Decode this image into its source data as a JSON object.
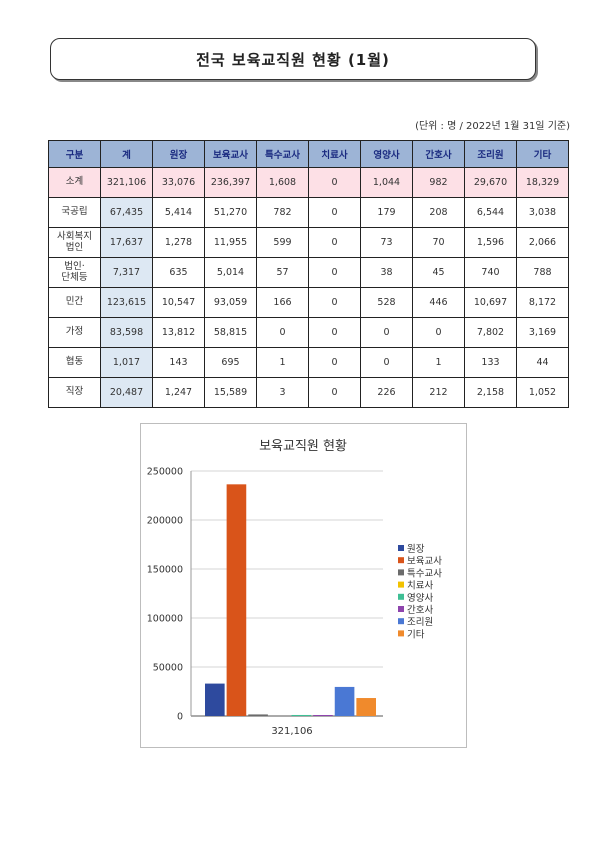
{
  "document": {
    "title": "전국 보육교직원 현황 (1월)",
    "unit_note": "(단위 : 명 / 2022년 1월 31일 기준)"
  },
  "table": {
    "headers": [
      "구분",
      "계",
      "원장",
      "보육교사",
      "특수교사",
      "치료사",
      "영양사",
      "간호사",
      "조리원",
      "기타"
    ],
    "rows": [
      {
        "label": "소계",
        "values": [
          "321,106",
          "33,076",
          "236,397",
          "1,608",
          "0",
          "1,044",
          "982",
          "29,670",
          "18,329"
        ]
      },
      {
        "label": "국공립",
        "values": [
          "67,435",
          "5,414",
          "51,270",
          "782",
          "0",
          "179",
          "208",
          "6,544",
          "3,038"
        ]
      },
      {
        "label": "사회복지\n법인",
        "values": [
          "17,637",
          "1,278",
          "11,955",
          "599",
          "0",
          "73",
          "70",
          "1,596",
          "2,066"
        ]
      },
      {
        "label": "법인·\n단체등",
        "values": [
          "7,317",
          "635",
          "5,014",
          "57",
          "0",
          "38",
          "45",
          "740",
          "788"
        ]
      },
      {
        "label": "민간",
        "values": [
          "123,615",
          "10,547",
          "93,059",
          "166",
          "0",
          "528",
          "446",
          "10,697",
          "8,172"
        ]
      },
      {
        "label": "가정",
        "values": [
          "83,598",
          "13,812",
          "58,815",
          "0",
          "0",
          "0",
          "0",
          "7,802",
          "3,169"
        ]
      },
      {
        "label": "협동",
        "values": [
          "1,017",
          "143",
          "695",
          "1",
          "0",
          "0",
          "1",
          "133",
          "44"
        ]
      },
      {
        "label": "직장",
        "values": [
          "20,487",
          "1,247",
          "15,589",
          "3",
          "0",
          "226",
          "212",
          "2,158",
          "1,052"
        ]
      }
    ]
  },
  "chart_data": {
    "type": "bar",
    "title": "보육교직원 현황",
    "categories": [
      "321,106"
    ],
    "series": [
      {
        "name": "원장",
        "values": [
          33076
        ],
        "color": "#2e4a9e"
      },
      {
        "name": "보육교사",
        "values": [
          236397
        ],
        "color": "#d9541a"
      },
      {
        "name": "특수교사",
        "values": [
          1608
        ],
        "color": "#6b6b6b"
      },
      {
        "name": "치료사",
        "values": [
          0
        ],
        "color": "#f2c200"
      },
      {
        "name": "영양사",
        "values": [
          1044
        ],
        "color": "#3fbf95"
      },
      {
        "name": "간호사",
        "values": [
          982
        ],
        "color": "#8e44ad"
      },
      {
        "name": "조리원",
        "values": [
          29670
        ],
        "color": "#4a78d4"
      },
      {
        "name": "기타",
        "values": [
          18329
        ],
        "color": "#f08a2c"
      }
    ],
    "ylim": [
      0,
      250000
    ],
    "yticks": [
      "0",
      "50000",
      "100000",
      "150000",
      "200000",
      "250000"
    ],
    "grid": true,
    "legend": "right"
  }
}
